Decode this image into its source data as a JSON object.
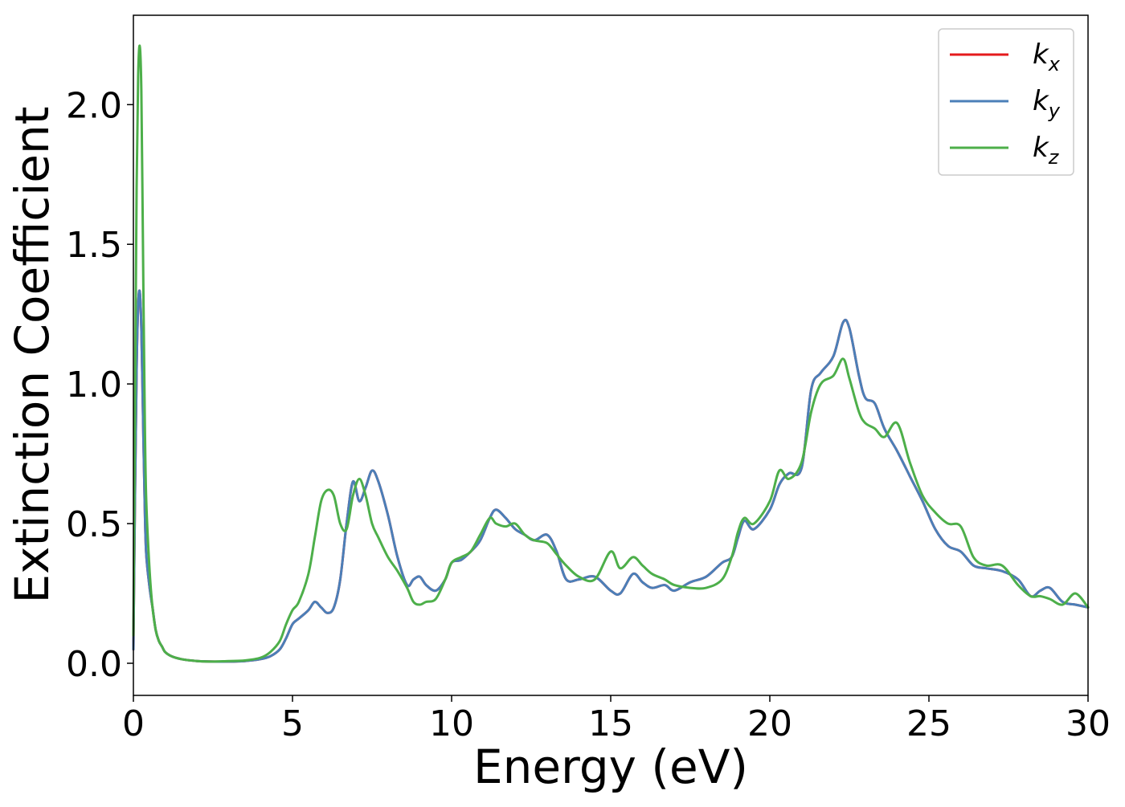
{
  "chart_data": {
    "type": "line",
    "xlabel": "Energy (eV)",
    "ylabel": "Extinction Coefficient",
    "xlim": [
      0,
      30
    ],
    "ylim": [
      -0.115,
      2.32
    ],
    "xticks": [
      0,
      5,
      10,
      15,
      20,
      25,
      30
    ],
    "yticks": [
      0.0,
      0.5,
      1.0,
      1.5,
      2.0
    ],
    "xtick_labels": [
      "0",
      "5",
      "10",
      "15",
      "20",
      "25",
      "30"
    ],
    "ytick_labels": [
      "0.0",
      "0.5",
      "1.0",
      "1.5",
      "2.0"
    ],
    "grid": false,
    "legend_position": "top-right",
    "series": [
      {
        "name": "k_x",
        "legend_base": "k",
        "legend_sub": "x",
        "color": "#e41a1c",
        "x": [
          0,
          0.05,
          0.1,
          0.15,
          0.2,
          0.25,
          0.3,
          0.35,
          0.4,
          0.5,
          0.6,
          0.7,
          0.8,
          0.9,
          1.0,
          1.2,
          1.5,
          2.0,
          2.5,
          3.0,
          3.5,
          4.0,
          4.3,
          4.6,
          4.8,
          5.0,
          5.2,
          5.5,
          5.7,
          5.9,
          6.1,
          6.3,
          6.5,
          6.7,
          6.9,
          7.1,
          7.3,
          7.5,
          7.7,
          8.0,
          8.3,
          8.6,
          8.8,
          9.0,
          9.2,
          9.5,
          9.8,
          10.0,
          10.3,
          10.6,
          10.9,
          11.2,
          11.4,
          11.7,
          12.0,
          12.3,
          12.6,
          13.0,
          13.3,
          13.6,
          14.0,
          14.5,
          15.0,
          15.3,
          15.7,
          16.0,
          16.3,
          16.7,
          17.0,
          17.5,
          18.0,
          18.5,
          18.8,
          19.0,
          19.2,
          19.5,
          20.0,
          20.3,
          20.6,
          21.0,
          21.3,
          21.6,
          22.0,
          22.3,
          22.5,
          22.8,
          23.0,
          23.3,
          23.6,
          24.0,
          24.4,
          24.8,
          25.2,
          25.6,
          26.0,
          26.4,
          26.8,
          27.3,
          27.8,
          28.2,
          28.5,
          28.8,
          29.2,
          29.6,
          30.0
        ],
        "y": [
          0.05,
          0.6,
          1.05,
          1.28,
          1.33,
          1.2,
          0.9,
          0.6,
          0.4,
          0.28,
          0.2,
          0.12,
          0.08,
          0.06,
          0.04,
          0.025,
          0.015,
          0.008,
          0.006,
          0.006,
          0.008,
          0.015,
          0.025,
          0.05,
          0.09,
          0.14,
          0.16,
          0.19,
          0.22,
          0.2,
          0.18,
          0.2,
          0.3,
          0.5,
          0.65,
          0.58,
          0.63,
          0.69,
          0.65,
          0.53,
          0.38,
          0.28,
          0.3,
          0.31,
          0.28,
          0.26,
          0.3,
          0.36,
          0.37,
          0.4,
          0.44,
          0.52,
          0.55,
          0.52,
          0.48,
          0.46,
          0.44,
          0.46,
          0.4,
          0.3,
          0.3,
          0.31,
          0.26,
          0.25,
          0.32,
          0.29,
          0.27,
          0.28,
          0.26,
          0.29,
          0.31,
          0.36,
          0.38,
          0.45,
          0.51,
          0.48,
          0.55,
          0.64,
          0.68,
          0.7,
          0.98,
          1.04,
          1.1,
          1.22,
          1.2,
          1.03,
          0.95,
          0.93,
          0.84,
          0.76,
          0.67,
          0.58,
          0.48,
          0.42,
          0.4,
          0.35,
          0.34,
          0.33,
          0.3,
          0.24,
          0.26,
          0.27,
          0.22,
          0.21,
          0.2
        ]
      },
      {
        "name": "k_y",
        "legend_base": "k",
        "legend_sub": "y",
        "color": "#4b7fb8",
        "x": [
          0,
          0.05,
          0.1,
          0.15,
          0.2,
          0.25,
          0.3,
          0.35,
          0.4,
          0.5,
          0.6,
          0.7,
          0.8,
          0.9,
          1.0,
          1.2,
          1.5,
          2.0,
          2.5,
          3.0,
          3.5,
          4.0,
          4.3,
          4.6,
          4.8,
          5.0,
          5.2,
          5.5,
          5.7,
          5.9,
          6.1,
          6.3,
          6.5,
          6.7,
          6.9,
          7.1,
          7.3,
          7.5,
          7.7,
          8.0,
          8.3,
          8.6,
          8.8,
          9.0,
          9.2,
          9.5,
          9.8,
          10.0,
          10.3,
          10.6,
          10.9,
          11.2,
          11.4,
          11.7,
          12.0,
          12.3,
          12.6,
          13.0,
          13.3,
          13.6,
          14.0,
          14.5,
          15.0,
          15.3,
          15.7,
          16.0,
          16.3,
          16.7,
          17.0,
          17.5,
          18.0,
          18.5,
          18.8,
          19.0,
          19.2,
          19.5,
          20.0,
          20.3,
          20.6,
          21.0,
          21.3,
          21.6,
          22.0,
          22.3,
          22.5,
          22.8,
          23.0,
          23.3,
          23.6,
          24.0,
          24.4,
          24.8,
          25.2,
          25.6,
          26.0,
          26.4,
          26.8,
          27.3,
          27.8,
          28.2,
          28.5,
          28.8,
          29.2,
          29.6,
          30.0
        ],
        "y": [
          0.05,
          0.6,
          1.05,
          1.28,
          1.33,
          1.2,
          0.9,
          0.6,
          0.4,
          0.28,
          0.2,
          0.12,
          0.08,
          0.06,
          0.04,
          0.025,
          0.015,
          0.008,
          0.006,
          0.006,
          0.008,
          0.015,
          0.025,
          0.05,
          0.09,
          0.14,
          0.16,
          0.19,
          0.22,
          0.2,
          0.18,
          0.2,
          0.3,
          0.5,
          0.65,
          0.58,
          0.63,
          0.69,
          0.65,
          0.53,
          0.38,
          0.28,
          0.3,
          0.31,
          0.28,
          0.26,
          0.3,
          0.36,
          0.37,
          0.4,
          0.44,
          0.52,
          0.55,
          0.52,
          0.48,
          0.46,
          0.44,
          0.46,
          0.4,
          0.3,
          0.3,
          0.31,
          0.26,
          0.25,
          0.32,
          0.29,
          0.27,
          0.28,
          0.26,
          0.29,
          0.31,
          0.36,
          0.38,
          0.45,
          0.51,
          0.48,
          0.55,
          0.64,
          0.68,
          0.7,
          0.98,
          1.04,
          1.1,
          1.22,
          1.2,
          1.03,
          0.95,
          0.93,
          0.84,
          0.76,
          0.67,
          0.58,
          0.48,
          0.42,
          0.4,
          0.35,
          0.34,
          0.33,
          0.3,
          0.24,
          0.26,
          0.27,
          0.22,
          0.21,
          0.2
        ]
      },
      {
        "name": "k_z",
        "legend_base": "k",
        "legend_sub": "z",
        "color": "#4daf4a",
        "x": [
          0,
          0.05,
          0.1,
          0.15,
          0.2,
          0.25,
          0.3,
          0.35,
          0.4,
          0.5,
          0.6,
          0.7,
          0.8,
          0.9,
          1.0,
          1.2,
          1.5,
          2.0,
          2.5,
          3.0,
          3.5,
          4.0,
          4.3,
          4.6,
          4.8,
          5.0,
          5.2,
          5.5,
          5.7,
          5.9,
          6.1,
          6.3,
          6.5,
          6.7,
          6.9,
          7.1,
          7.3,
          7.5,
          7.7,
          8.0,
          8.3,
          8.6,
          8.8,
          9.0,
          9.2,
          9.5,
          9.8,
          10.0,
          10.3,
          10.6,
          10.9,
          11.2,
          11.4,
          11.7,
          12.0,
          12.3,
          12.6,
          13.0,
          13.3,
          13.6,
          14.0,
          14.5,
          15.0,
          15.3,
          15.7,
          16.0,
          16.3,
          16.7,
          17.0,
          17.5,
          18.0,
          18.5,
          18.8,
          19.0,
          19.2,
          19.5,
          20.0,
          20.3,
          20.6,
          21.0,
          21.3,
          21.6,
          22.0,
          22.3,
          22.5,
          22.8,
          23.0,
          23.3,
          23.6,
          24.0,
          24.4,
          24.8,
          25.2,
          25.6,
          26.0,
          26.4,
          26.8,
          27.3,
          27.8,
          28.2,
          28.5,
          28.8,
          29.2,
          29.6,
          30.0
        ],
        "y": [
          0.1,
          0.9,
          1.7,
          2.1,
          2.21,
          2.05,
          1.5,
          0.95,
          0.6,
          0.35,
          0.2,
          0.12,
          0.08,
          0.06,
          0.04,
          0.025,
          0.015,
          0.008,
          0.006,
          0.008,
          0.01,
          0.02,
          0.04,
          0.08,
          0.14,
          0.19,
          0.22,
          0.32,
          0.45,
          0.58,
          0.62,
          0.6,
          0.5,
          0.48,
          0.6,
          0.66,
          0.6,
          0.5,
          0.45,
          0.38,
          0.33,
          0.27,
          0.22,
          0.21,
          0.22,
          0.23,
          0.3,
          0.36,
          0.38,
          0.4,
          0.46,
          0.52,
          0.5,
          0.49,
          0.5,
          0.46,
          0.44,
          0.43,
          0.39,
          0.35,
          0.31,
          0.3,
          0.4,
          0.34,
          0.38,
          0.35,
          0.32,
          0.3,
          0.28,
          0.27,
          0.27,
          0.3,
          0.38,
          0.47,
          0.52,
          0.5,
          0.58,
          0.69,
          0.66,
          0.72,
          0.9,
          1.0,
          1.03,
          1.09,
          1.02,
          0.9,
          0.86,
          0.84,
          0.81,
          0.86,
          0.72,
          0.6,
          0.54,
          0.5,
          0.49,
          0.38,
          0.35,
          0.35,
          0.28,
          0.24,
          0.24,
          0.23,
          0.21,
          0.25,
          0.2
        ]
      }
    ]
  }
}
